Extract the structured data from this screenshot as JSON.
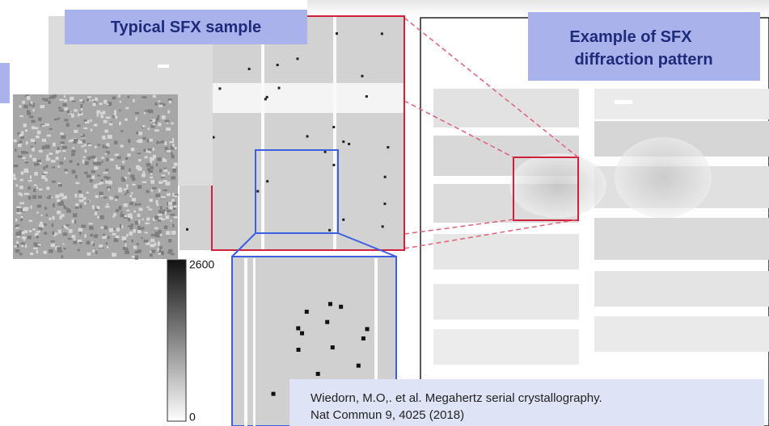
{
  "labels": {
    "sample": "Typical SFX sample",
    "pattern": [
      "Example of SFX",
      "diffraction pattern"
    ]
  },
  "colorbar": {
    "max": "2600",
    "min": "0"
  },
  "citation": [
    "Wiedorn, M.O,. et al. Megahertz serial crystallography.",
    "Nat Commun 9, 4025 (2018)"
  ]
}
